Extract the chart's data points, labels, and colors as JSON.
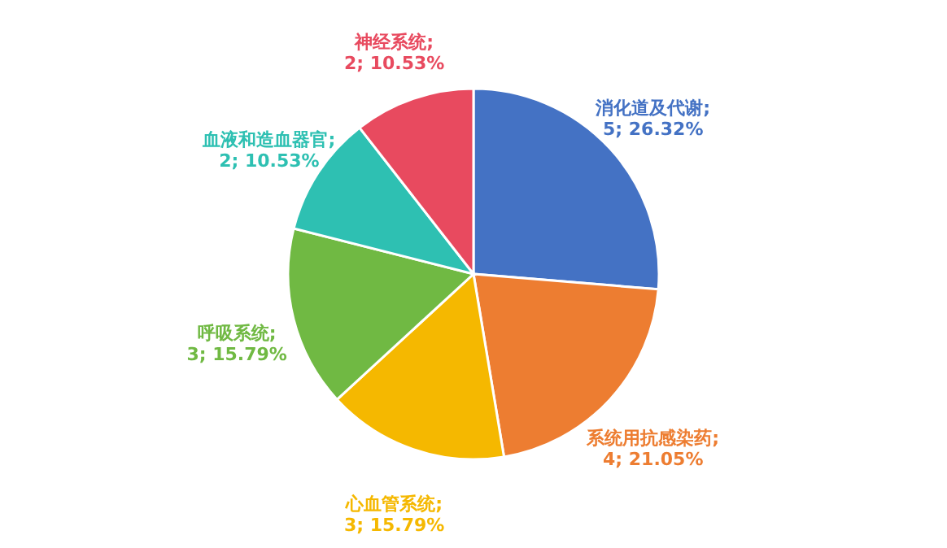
{
  "chart_data": {
    "type": "pie",
    "categories": [
      "消化道及代谢",
      "系统用抗感染药",
      "心血管系统",
      "呼吸系统",
      "血液和造血器官",
      "神经系统"
    ],
    "values": [
      5,
      4,
      3,
      3,
      2,
      2
    ],
    "colors": [
      "#4472c4",
      "#ed7d31",
      "#f5b800",
      "#70b943",
      "#2ec0b2",
      "#e84a5f"
    ],
    "value_labels": [
      "; 5; 26.32%",
      "; 4; 21.05%",
      "; 3; 15.79%",
      "; 3; 15.79%",
      "; 2; 10.53%",
      "; 2; 10.53%"
    ],
    "legend": false
  }
}
